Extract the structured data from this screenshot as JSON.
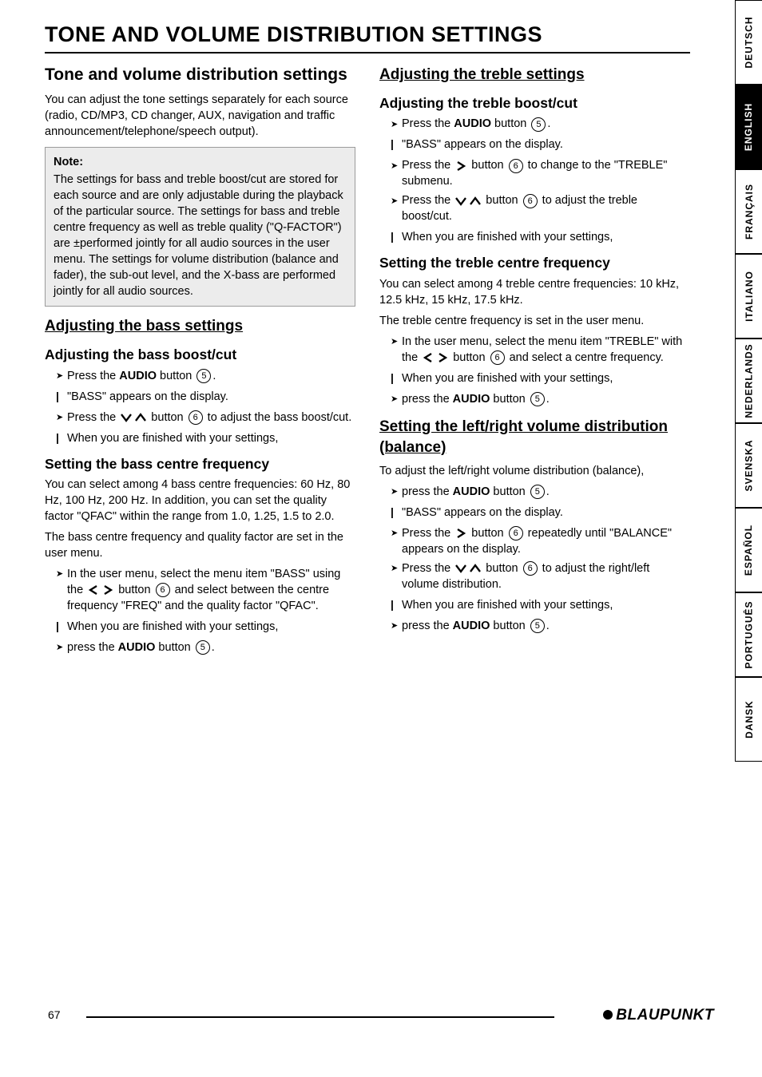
{
  "lang_tabs": [
    "DEUTSCH",
    "ENGLISH",
    "FRANÇAIS",
    "ITALIANO",
    "NEDERLANDS",
    "SVENSKA",
    "ESPAÑOL",
    "PORTUGUÊS",
    "DANSK"
  ],
  "lang_active_index": 1,
  "page_title": "TONE AND VOLUME DISTRIBUTION SETTINGS",
  "L_h2": "Tone and volume distribution settings",
  "L_para1": "You can adjust the tone settings separately for each source (radio, CD/MP3, CD changer, AUX, navigation and traffic announcement/telephone/speech output).",
  "L_note_t": "Note:",
  "L_note_body_a": "The settings for bass and treble boost/cut are stored for each source and are only adjustable during the playback of the particular source. The settings for bass and treble centre frequency as well as treble quality (\"Q-FACTOR\") are ",
  "L_note_body_pm": "±",
  "L_note_body_b": "performed jointly for all audio sources in the user menu. The settings for volume distribution (balance and fader), the sub-out level, and the X-bass are performed jointly for all audio sources.",
  "L_bass_u": "Adjusting the bass settings",
  "L_bass_boost_b": "Adjusting the bass boost/cut",
  "L_bass_boost_li1a": "Press the ",
  "L_bass_boost_li1b": "AUDIO",
  "L_bass_boost_li1c": " button ",
  "L_bass_boost_li1_num": "5",
  "L_bass_boost_li1d": ".",
  "L_bass_boost_after1": "\"BASS\" appears on the display.",
  "L_bass_boost_li2a": "Press the ",
  "L_bass_boost_li2b": " button ",
  "L_bass_boost_li2_num": "6",
  "L_bass_boost_li2c": " to adjust the bass boost/cut.",
  "L_bass_boost_after2": "When you are finished with your settings,",
  "L_bass_freq_b": "Setting the bass centre frequency",
  "L_bass_freq_p1": "You can select among 4 bass centre frequencies: 60 Hz, 80 Hz, 100 Hz, 200 Hz. In addition, you can set the quality factor \"QFAC\" within the range from 1.0, 1.25, 1.5 to 2.0.",
  "L_bass_freq_p2": "The bass centre frequency and quality factor are set in the user menu.",
  "L_bass_freq_li1a": "In the user menu, select the menu item \"BASS\" using the ",
  "L_bass_freq_li1b": " button ",
  "L_bass_freq_li1_num": "6",
  "L_bass_freq_li1c": " and select between the centre frequency \"FREQ\" and the quality factor \"QFAC\".",
  "L_bass_freq_after1": "When you are finished with your settings,",
  "L_bass_freq_li2a": "press the ",
  "L_bass_freq_li2b": "AUDIO",
  "L_bass_freq_li2c": " button ",
  "L_bass_freq_li2_num": "5",
  "L_bass_freq_li2d": ".",
  "R_treble_u": "Adjusting the treble settings",
  "R_treble_boost_b": "Adjusting the treble boost/cut",
  "R_treble_li1a": "Press the ",
  "R_treble_li1b": "AUDIO",
  "R_treble_li1c": " button ",
  "R_treble_li1_num": "5",
  "R_treble_li1d": ".",
  "R_treble_after1": "\"BASS\" appears on the display.",
  "R_treble_li2a": "Press the ",
  "R_treble_li2b": " button ",
  "R_treble_li2_num": "6",
  "R_treble_li2c": " to change to the \"TREBLE\" submenu.",
  "R_treble_li3a": "Press the ",
  "R_treble_li3b": " button ",
  "R_treble_li3_num": "6",
  "R_treble_li3c": " to adjust the treble boost/cut.",
  "R_treble_after2": "When you are finished with your settings,",
  "R_treble_freq_b": "Setting the treble centre frequency",
  "R_treble_freq_p1": "You can select among 4 treble centre frequencies: 10 kHz, 12.5 kHz, 15 kHz, 17.5 kHz.",
  "R_treble_freq_p2": "The treble centre frequency is set in the user menu.",
  "R_treble_freq_li1a": "In the user menu, select the menu item \"TREBLE\" with the ",
  "R_treble_freq_li1b": " button ",
  "R_treble_freq_li1_num": "6",
  "R_treble_freq_li1c": " and select a centre frequency.",
  "R_treble_freq_after1": "When you are finished with your settings,",
  "R_treble_freq_li2a": "press the ",
  "R_treble_freq_li2b": "AUDIO",
  "R_treble_freq_li2c": " button ",
  "R_treble_freq_li2_num": "5",
  "R_treble_freq_li2d": ".",
  "R_bal_u": "Setting the left/right volume distribution (balance)",
  "R_bal_p1": "To adjust the left/right volume distribution (balance),",
  "R_bal_li1a": "press the ",
  "R_bal_li1b": "AUDIO",
  "R_bal_li1c": " button ",
  "R_bal_li1_num": "5",
  "R_bal_li1d": ".",
  "R_bal_after1": "\"BASS\" appears on the display.",
  "R_bal_li2a": "Press the ",
  "R_bal_li2b": " button ",
  "R_bal_li2_num": "6",
  "R_bal_li2c": " repeatedly until \"BALANCE\" appears on the display.",
  "R_bal_li3a": "Press the ",
  "R_bal_li3b": " button ",
  "R_bal_li3_num": "6",
  "R_bal_li3c": " to adjust the right/left volume distribution.",
  "R_bal_after2": "When you are finished with your settings,",
  "R_bal_li4a": "press the ",
  "R_bal_li4b": "AUDIO",
  "R_bal_li4c": " button ",
  "R_bal_li4_num": "5",
  "R_bal_li4d": ".",
  "page_num": "67",
  "brand": "BLAUPUNKT"
}
